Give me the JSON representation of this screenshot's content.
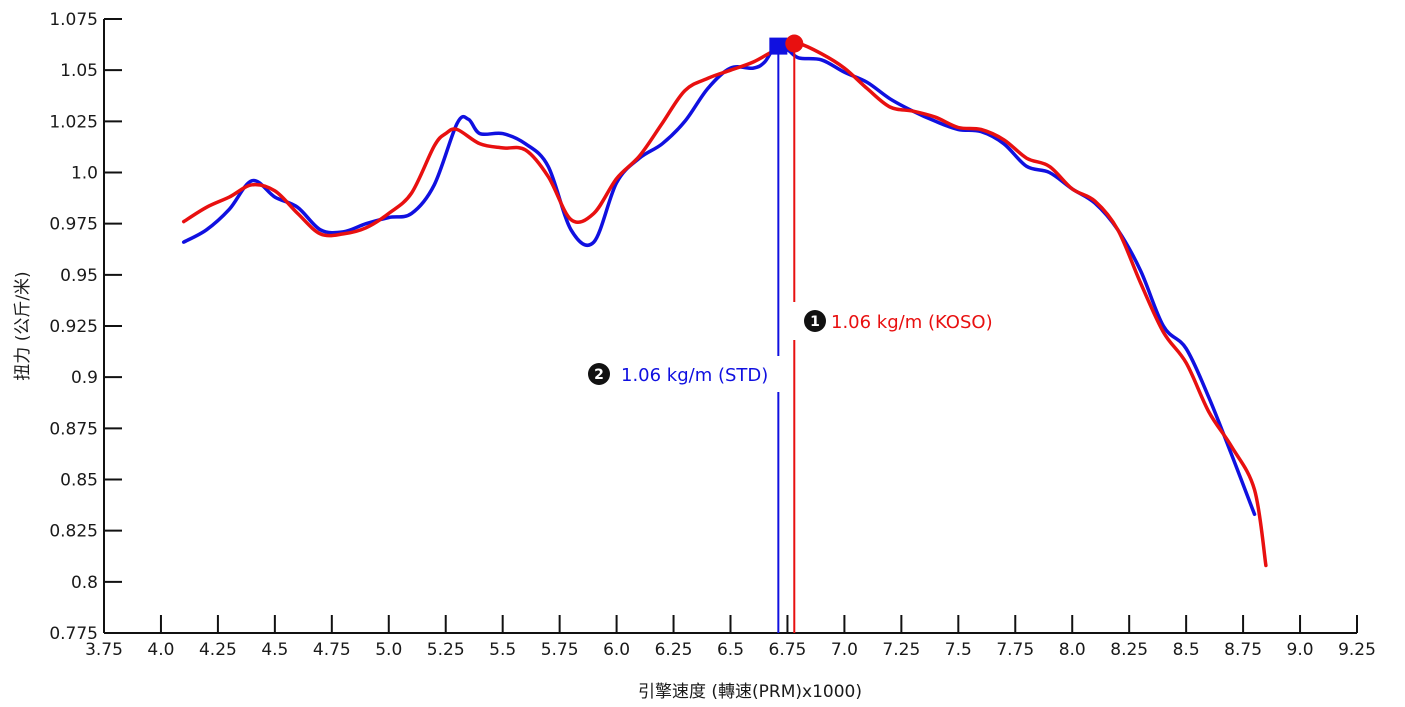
{
  "chart_data": {
    "type": "line",
    "title": "",
    "xlabel": "引擎速度 (轉速(PRM)x1000)",
    "ylabel": "扭力 (公斤/米)",
    "xlim": [
      3.75,
      9.25
    ],
    "ylim": [
      0.775,
      1.075
    ],
    "x_ticks": [
      3.75,
      4.0,
      4.25,
      4.5,
      4.75,
      5.0,
      5.25,
      5.5,
      5.75,
      6.0,
      6.25,
      6.5,
      6.75,
      7.0,
      7.25,
      7.5,
      7.75,
      8.0,
      8.25,
      8.5,
      8.75,
      9.0,
      9.25
    ],
    "x_tick_labels": [
      "3.75",
      "4.0",
      "4.25",
      "4.5",
      "4.75",
      "5.0",
      "5.25",
      "5.5",
      "5.75",
      "6.0",
      "6.25",
      "6.5",
      "6.75",
      "7.0",
      "7.25",
      "7.5",
      "7.75",
      "8.0",
      "8.25",
      "8.5",
      "8.75",
      "9.0",
      "9.25"
    ],
    "y_ticks": [
      0.775,
      0.8,
      0.825,
      0.85,
      0.875,
      0.9,
      0.925,
      0.95,
      0.975,
      1.0,
      1.025,
      1.05,
      1.075
    ],
    "y_tick_labels": [
      "0.775",
      "0.8",
      "0.825",
      "0.85",
      "0.875",
      "0.9",
      "0.925",
      "0.95",
      "0.975",
      "1.0",
      "1.025",
      "1.05",
      "1.075"
    ],
    "grid": false,
    "legend": "none",
    "series": [
      {
        "color": "#1010e0",
        "marker": "square",
        "x": [
          4.1,
          4.2,
          4.3,
          4.4,
          4.5,
          4.6,
          4.7,
          4.8,
          4.9,
          5.0,
          5.1,
          5.2,
          5.3,
          5.35,
          5.4,
          5.5,
          5.6,
          5.7,
          5.8,
          5.9,
          6.0,
          6.1,
          6.2,
          6.3,
          6.4,
          6.5,
          6.6,
          6.65,
          6.7,
          6.75,
          6.8,
          6.9,
          7.0,
          7.1,
          7.2,
          7.3,
          7.4,
          7.5,
          7.6,
          7.7,
          7.8,
          7.9,
          8.0,
          8.1,
          8.2,
          8.3,
          8.4,
          8.5,
          8.6,
          8.7,
          8.8
        ],
        "y": [
          0.966,
          0.972,
          0.982,
          0.996,
          0.988,
          0.983,
          0.972,
          0.971,
          0.975,
          0.978,
          0.98,
          0.994,
          1.024,
          1.026,
          1.019,
          1.019,
          1.014,
          1.003,
          0.972,
          0.966,
          0.995,
          1.007,
          1.014,
          1.025,
          1.041,
          1.051,
          1.051,
          1.054,
          1.062,
          1.06,
          1.056,
          1.055,
          1.049,
          1.044,
          1.036,
          1.03,
          1.025,
          1.021,
          1.02,
          1.014,
          1.003,
          1.0,
          0.992,
          0.985,
          0.972,
          0.952,
          0.925,
          0.914,
          0.89,
          0.862,
          0.833
        ]
      },
      {
        "color": "#e81010",
        "marker": "circle",
        "x": [
          4.1,
          4.2,
          4.3,
          4.4,
          4.5,
          4.6,
          4.7,
          4.8,
          4.9,
          5.0,
          5.1,
          5.2,
          5.25,
          5.3,
          5.4,
          5.5,
          5.6,
          5.7,
          5.8,
          5.9,
          6.0,
          6.1,
          6.2,
          6.3,
          6.4,
          6.5,
          6.6,
          6.7,
          6.75,
          6.8,
          6.9,
          7.0,
          7.1,
          7.2,
          7.3,
          7.4,
          7.5,
          7.6,
          7.7,
          7.8,
          7.9,
          8.0,
          8.1,
          8.2,
          8.3,
          8.4,
          8.5,
          8.6,
          8.7,
          8.8,
          8.85
        ],
        "y": [
          0.976,
          0.983,
          0.988,
          0.994,
          0.991,
          0.98,
          0.97,
          0.97,
          0.973,
          0.98,
          0.99,
          1.013,
          1.019,
          1.021,
          1.014,
          1.012,
          1.011,
          0.998,
          0.977,
          0.98,
          0.997,
          1.008,
          1.024,
          1.04,
          1.046,
          1.05,
          1.054,
          1.06,
          1.061,
          1.063,
          1.058,
          1.051,
          1.041,
          1.032,
          1.03,
          1.027,
          1.022,
          1.021,
          1.016,
          1.007,
          1.003,
          0.992,
          0.986,
          0.972,
          0.946,
          0.922,
          0.907,
          0.883,
          0.866,
          0.845,
          0.808
        ]
      }
    ],
    "annotations": [
      {
        "badge": "1",
        "text": "1.06 kg/m (KOSO)",
        "x": 6.78,
        "y": 1.063,
        "color": "#e81010"
      },
      {
        "badge": "2",
        "text": "1.06 kg/m (STD)",
        "x": 6.71,
        "y": 1.062,
        "color": "#1010e0"
      }
    ]
  }
}
